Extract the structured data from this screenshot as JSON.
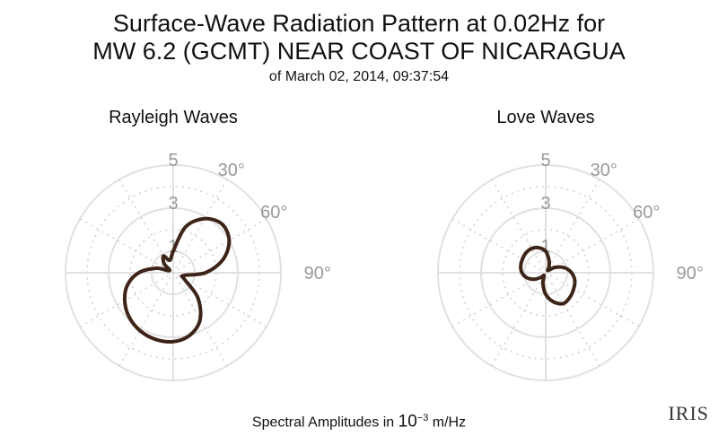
{
  "title": {
    "line1": "Surface-Wave Radiation Pattern at 0.02Hz for",
    "line2": "MW 6.2 (GCMT) NEAR COAST OF NICARAGUA",
    "line3": "of March 02, 2014, 09:37:54"
  },
  "footer": {
    "prefix": "Spectral Amplitudes in ",
    "base": "10",
    "exponent": "−3",
    "unit": " m/Hz"
  },
  "logo": "IRIS",
  "colors": {
    "curve": "#3d2418",
    "grid": "#e1e1e1",
    "grid_dotted": "#cfcfcf",
    "labels": "#999999"
  },
  "chart_data": [
    {
      "type": "polar",
      "title": "Rayleigh Waves",
      "rlim": [
        0,
        5
      ],
      "radial_ticks": [
        "1",
        "3",
        "5"
      ],
      "radial_tick_values": [
        1,
        3,
        5
      ],
      "angle_ticks": [
        "30°",
        "60°",
        "90°"
      ],
      "angle_tick_values": [
        30,
        60,
        90
      ],
      "grid": true,
      "series": [
        {
          "values": [
            {
              "azimuth": 0,
              "r": 1.0
            },
            {
              "azimuth": 15,
              "r": 2.2
            },
            {
              "azimuth": 30,
              "r": 2.9
            },
            {
              "azimuth": 45,
              "r": 3.2
            },
            {
              "azimuth": 60,
              "r": 3.0
            },
            {
              "azimuth": 75,
              "r": 2.4
            },
            {
              "azimuth": 90,
              "r": 1.5
            },
            {
              "azimuth": 105,
              "r": 0.5
            },
            {
              "azimuth": 120,
              "r": 0.6
            },
            {
              "azimuth": 135,
              "r": 1.6
            },
            {
              "azimuth": 150,
              "r": 2.5
            },
            {
              "azimuth": 165,
              "r": 3.0
            },
            {
              "azimuth": 180,
              "r": 3.2
            },
            {
              "azimuth": 195,
              "r": 3.2
            },
            {
              "azimuth": 210,
              "r": 3.1
            },
            {
              "azimuth": 225,
              "r": 2.9
            },
            {
              "azimuth": 240,
              "r": 2.6
            },
            {
              "azimuth": 255,
              "r": 2.2
            },
            {
              "azimuth": 270,
              "r": 1.6
            },
            {
              "azimuth": 285,
              "r": 0.8
            },
            {
              "azimuth": 300,
              "r": 0.2
            },
            {
              "azimuth": 315,
              "r": 0.6
            },
            {
              "azimuth": 330,
              "r": 0.9
            },
            {
              "azimuth": 345,
              "r": 0.6
            }
          ]
        }
      ]
    },
    {
      "type": "polar",
      "title": "Love Waves",
      "rlim": [
        0,
        5
      ],
      "radial_ticks": [
        "1",
        "3",
        "5"
      ],
      "radial_tick_values": [
        1,
        3,
        5
      ],
      "angle_ticks": [
        "30°",
        "60°",
        "90°"
      ],
      "angle_tick_values": [
        30,
        60,
        90
      ],
      "grid": true,
      "series": [
        {
          "values": [
            {
              "azimuth": 0,
              "r": 1.0
            },
            {
              "azimuth": 15,
              "r": 0.6
            },
            {
              "azimuth": 30,
              "r": 0.3
            },
            {
              "azimuth": 45,
              "r": 0.15
            },
            {
              "azimuth": 60,
              "r": 0.5
            },
            {
              "azimuth": 75,
              "r": 0.9
            },
            {
              "azimuth": 90,
              "r": 1.2
            },
            {
              "azimuth": 105,
              "r": 1.4
            },
            {
              "azimuth": 120,
              "r": 1.5
            },
            {
              "azimuth": 135,
              "r": 1.6
            },
            {
              "azimuth": 150,
              "r": 1.65
            },
            {
              "azimuth": 165,
              "r": 1.4
            },
            {
              "azimuth": 180,
              "r": 1.0
            },
            {
              "azimuth": 195,
              "r": 0.5
            },
            {
              "azimuth": 210,
              "r": 0.15
            },
            {
              "azimuth": 225,
              "r": 0.3
            },
            {
              "azimuth": 240,
              "r": 0.6
            },
            {
              "azimuth": 255,
              "r": 0.9
            },
            {
              "azimuth": 270,
              "r": 1.1
            },
            {
              "azimuth": 285,
              "r": 1.2
            },
            {
              "azimuth": 300,
              "r": 1.25
            },
            {
              "azimuth": 315,
              "r": 1.3
            },
            {
              "azimuth": 330,
              "r": 1.3
            },
            {
              "azimuth": 345,
              "r": 1.2
            }
          ]
        }
      ]
    }
  ]
}
